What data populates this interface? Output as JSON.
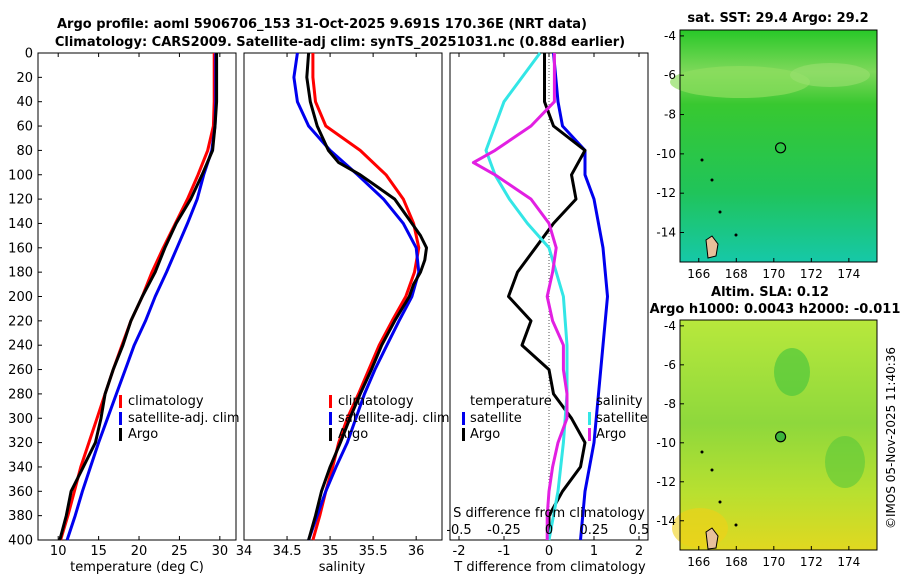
{
  "header": {
    "title_line1": "Argo profile: aoml 5906706_153 31-Oct-2025 9.691S 170.36E (NRT data)",
    "title_line2": "Climatology: CARS2009. Satellite-adj clim: synTS_20251031.nc (0.88d earlier)"
  },
  "colors": {
    "climatology": "#ff0000",
    "satellite": "#0000ee",
    "argo": "#000000",
    "s_sat": "#33e6e6",
    "s_argo": "#e21fe2"
  },
  "chart_data": [
    {
      "id": "temperature",
      "type": "line",
      "xlabel": "temperature (deg C)",
      "xlim": [
        7.5,
        32
      ],
      "xticks": [
        10,
        15,
        20,
        25,
        30
      ],
      "ylim": [
        0,
        400
      ],
      "yticks": [
        0,
        20,
        40,
        60,
        80,
        100,
        120,
        140,
        160,
        180,
        200,
        220,
        240,
        260,
        280,
        300,
        320,
        340,
        360,
        380,
        400
      ],
      "legend": {
        "position": "center-right",
        "entries": [
          "climatology",
          "satellite-adj. clim",
          "Argo"
        ]
      },
      "series": [
        {
          "name": "climatology",
          "color": "#ff0000",
          "depth": [
            0,
            40,
            60,
            80,
            100,
            120,
            140,
            160,
            180,
            200,
            220,
            240,
            260,
            280,
            300,
            320,
            340,
            360,
            380,
            400
          ],
          "values": [
            29.3,
            29.3,
            29.2,
            28.5,
            27.3,
            26,
            24.5,
            23,
            21.6,
            20.4,
            19,
            17.9,
            16.8,
            15.8,
            14.8,
            13.8,
            12.8,
            12,
            11.2,
            10.3
          ]
        },
        {
          "name": "satellite-adj. clim",
          "color": "#0000ee",
          "depth": [
            0,
            40,
            60,
            80,
            100,
            120,
            140,
            160,
            180,
            200,
            220,
            240,
            260,
            280,
            300,
            320,
            340,
            360,
            380,
            400
          ],
          "values": [
            29.5,
            29.5,
            29.4,
            29,
            28,
            27.2,
            26,
            24.7,
            23.4,
            22,
            20.8,
            19.4,
            18.3,
            17.2,
            16.1,
            15,
            14,
            13,
            12.1,
            11.1
          ]
        },
        {
          "name": "Argo",
          "color": "#000000",
          "depth": [
            0,
            40,
            60,
            80,
            100,
            120,
            140,
            160,
            180,
            200,
            220,
            240,
            260,
            280,
            300,
            320,
            340,
            360,
            380,
            400
          ],
          "values": [
            29.6,
            29.6,
            29.4,
            29.1,
            27.8,
            26.4,
            24.6,
            23.2,
            22,
            20.4,
            19,
            18,
            16.8,
            15.8,
            15.3,
            14.6,
            13.1,
            11.6,
            11,
            10.2
          ]
        }
      ]
    },
    {
      "id": "salinity",
      "type": "line",
      "xlabel": "salinity",
      "xlim": [
        34,
        36.3
      ],
      "xticks": [
        34,
        34.5,
        35,
        35.5,
        36
      ],
      "ylim": [
        0,
        400
      ],
      "legend": {
        "position": "center-right",
        "entries": [
          "climatology",
          "satellite-adj. clim",
          "Argo"
        ]
      },
      "series": [
        {
          "name": "climatology",
          "color": "#ff0000",
          "depth": [
            0,
            20,
            40,
            60,
            80,
            100,
            120,
            140,
            160,
            180,
            200,
            220,
            240,
            260,
            280,
            300,
            320,
            340,
            360,
            380,
            400
          ],
          "values": [
            34.8,
            34.8,
            34.83,
            34.95,
            35.35,
            35.65,
            35.85,
            35.97,
            36.03,
            35.98,
            35.88,
            35.72,
            35.57,
            35.45,
            35.33,
            35.2,
            35.1,
            35.03,
            34.95,
            34.88,
            34.8
          ]
        },
        {
          "name": "satellite-adj. clim",
          "color": "#0000ee",
          "depth": [
            0,
            20,
            40,
            60,
            80,
            100,
            120,
            140,
            160,
            180,
            200,
            220,
            240,
            260,
            280,
            300,
            320,
            340,
            360,
            380,
            400
          ],
          "values": [
            34.62,
            34.58,
            34.62,
            34.75,
            35.0,
            35.32,
            35.62,
            35.85,
            36.0,
            36.03,
            35.95,
            35.8,
            35.66,
            35.52,
            35.4,
            35.3,
            35.2,
            35.07,
            34.95,
            34.85,
            34.75
          ]
        },
        {
          "name": "Argo",
          "color": "#000000",
          "depth": [
            0,
            20,
            40,
            60,
            80,
            90,
            100,
            110,
            120,
            140,
            150,
            160,
            170,
            180,
            190,
            200,
            220,
            240,
            260,
            280,
            300,
            320,
            340,
            360,
            380,
            400
          ],
          "values": [
            34.75,
            34.73,
            34.77,
            34.85,
            34.98,
            35.1,
            35.35,
            35.55,
            35.75,
            35.95,
            36.05,
            36.12,
            36.1,
            36.05,
            35.97,
            35.92,
            35.75,
            35.6,
            35.48,
            35.35,
            35.23,
            35.12,
            35.0,
            34.9,
            34.83,
            34.75
          ]
        }
      ]
    },
    {
      "id": "difference",
      "type": "line",
      "xlabel": "T difference from climatology",
      "xlabel_top": "S difference from climatology",
      "xlim": [
        -2.2,
        2.2
      ],
      "xticks": [
        -2,
        -1,
        0,
        1,
        2
      ],
      "s_tick_labels": [
        "-0.5",
        "-0.25",
        "0",
        "0.25",
        "0.5"
      ],
      "ylim": [
        0,
        400
      ],
      "legend_temperature": {
        "heading": "temperature",
        "entries": [
          "satellite",
          "Argo"
        ]
      },
      "legend_salinity": {
        "heading": "salinity",
        "entries": [
          "satellite",
          "Argo"
        ]
      },
      "series": [
        {
          "name": "temperature satellite",
          "color": "#0000ee",
          "depth": [
            0,
            40,
            60,
            80,
            100,
            120,
            160,
            200,
            240,
            280,
            320,
            360,
            400
          ],
          "values": [
            0.1,
            0.2,
            0.3,
            0.8,
            0.8,
            1.0,
            1.2,
            1.3,
            1.2,
            1.1,
            1.0,
            0.8,
            0.7
          ]
        },
        {
          "name": "temperature Argo",
          "color": "#000000",
          "depth": [
            0,
            40,
            60,
            80,
            100,
            120,
            140,
            160,
            180,
            200,
            220,
            240,
            260,
            280,
            300,
            320,
            340,
            360,
            380,
            400
          ],
          "values": [
            -0.1,
            -0.1,
            0.1,
            0.8,
            0.5,
            0.6,
            0.1,
            -0.3,
            -0.7,
            -0.9,
            -0.4,
            -0.6,
            0.0,
            0.1,
            0.5,
            0.8,
            0.7,
            0.3,
            0.0,
            0.0
          ]
        },
        {
          "name": "salinity satellite",
          "color": "#33e6e6",
          "depth": [
            0,
            40,
            80,
            100,
            120,
            140,
            160,
            200,
            240,
            280,
            320,
            360,
            400
          ],
          "values": [
            -0.05,
            -0.25,
            -0.35,
            -0.3,
            -0.22,
            -0.12,
            0.0,
            0.08,
            0.1,
            0.1,
            0.08,
            0.05,
            0.0
          ]
        },
        {
          "name": "salinity Argo",
          "color": "#e21fe2",
          "depth": [
            0,
            40,
            60,
            80,
            90,
            100,
            120,
            140,
            160,
            180,
            200,
            220,
            240,
            260,
            280,
            300,
            320,
            340,
            360,
            380,
            400
          ],
          "values": [
            0.03,
            0.03,
            -0.1,
            -0.3,
            -0.42,
            -0.3,
            -0.1,
            0.0,
            0.04,
            0.02,
            -0.01,
            0.02,
            0.08,
            0.08,
            0.1,
            0.1,
            0.05,
            0.02,
            0.0,
            -0.01,
            -0.01
          ]
        }
      ]
    },
    {
      "id": "sst_map",
      "type": "heatmap",
      "title": "sat. SST: 29.4 Argo: 29.2",
      "xticks": [
        166,
        168,
        170,
        172,
        174
      ],
      "yticks": [
        -4,
        -6,
        -8,
        -10,
        -12,
        -14
      ],
      "xlim": [
        165,
        175.5
      ],
      "ylim": [
        -15.5,
        -3.7
      ],
      "marker": {
        "lon": 170.36,
        "lat": -9.691
      }
    },
    {
      "id": "sla_map",
      "type": "heatmap",
      "title": "Altim. SLA: 0.12",
      "subtitle": "Argo h1000: 0.0043 h2000: -0.011",
      "xticks": [
        166,
        168,
        170,
        172,
        174
      ],
      "yticks": [
        -4,
        -6,
        -8,
        -10,
        -12,
        -14
      ],
      "xlim": [
        165,
        175.5
      ],
      "ylim": [
        -15.5,
        -3.7
      ],
      "marker": {
        "lon": 170.36,
        "lat": -9.691
      }
    }
  ],
  "footer": {
    "stamp": "©IMOS 05-Nov-2025 11:40:36"
  }
}
